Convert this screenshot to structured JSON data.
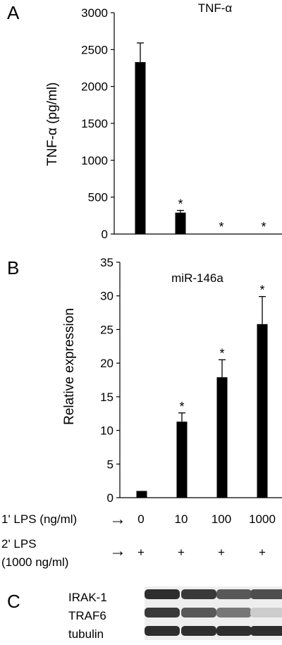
{
  "panels": {
    "a": "A",
    "b": "B",
    "c": "C"
  },
  "chart_data": [
    {
      "type": "bar",
      "title": "TNF-α",
      "ylabel": "TNF-α (pg/ml)",
      "ylim": [
        0,
        3000
      ],
      "yticks": [
        0,
        500,
        1000,
        1500,
        2000,
        2500,
        3000
      ],
      "x": [
        "0",
        "10",
        "100",
        "1000"
      ],
      "values": [
        2330,
        290,
        0,
        0
      ],
      "errors": [
        260,
        30,
        0,
        0
      ],
      "significance": [
        "",
        "*",
        "*",
        "*"
      ],
      "bar_color": "#000000"
    },
    {
      "type": "bar",
      "title": "miR-146a",
      "ylabel": "Relative  expression",
      "ylim": [
        0,
        35
      ],
      "yticks": [
        0,
        5,
        10,
        15,
        20,
        25,
        30,
        35
      ],
      "x": [
        "0",
        "10",
        "100",
        "1000"
      ],
      "values": [
        1,
        11.3,
        17.9,
        25.8
      ],
      "errors": [
        0,
        1.3,
        2.6,
        4.1
      ],
      "significance": [
        "",
        "*",
        "*",
        "*"
      ],
      "bar_color": "#000000"
    }
  ],
  "conditions": {
    "row1_label": "1' LPS (ng/ml)",
    "row1_values": [
      "0",
      "10",
      "100",
      "1000"
    ],
    "row2_label_line1": "2' LPS",
    "row2_label_line2": "(1000 ng/ml)",
    "row2_values": [
      "+",
      "+",
      "+",
      "+"
    ],
    "arrow": "→"
  },
  "blot": {
    "labels": [
      "IRAK-1",
      "TRAF6",
      "tubulin"
    ],
    "intensity": [
      [
        0.9,
        0.85,
        0.7,
        0.75
      ],
      [
        0.85,
        0.7,
        0.55,
        0.15
      ],
      [
        0.9,
        0.9,
        0.9,
        0.9
      ]
    ]
  }
}
